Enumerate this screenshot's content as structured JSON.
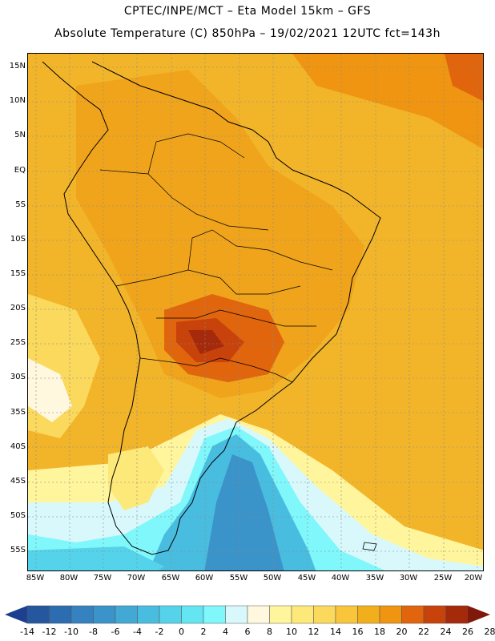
{
  "header": {
    "title_line1": "CPTEC/INPE/MCT –  Eta Model 15km – GFS",
    "title_line2": "Absolute Temperature (C) 850hPa – 19/02/2021 12UTC fct=143h"
  },
  "map": {
    "lat_labels": [
      "15N",
      "10N",
      "5N",
      "EQ",
      "5S",
      "10S",
      "15S",
      "20S",
      "25S",
      "30S",
      "35S",
      "40S",
      "45S",
      "50S",
      "55S"
    ],
    "lon_labels": [
      "85W",
      "80W",
      "75W",
      "70W",
      "65W",
      "60W",
      "55W",
      "50W",
      "45W",
      "40W",
      "35W",
      "30W",
      "25W",
      "20W"
    ]
  },
  "colorbar": {
    "labels": [
      "-14",
      "-12",
      "-10",
      "-8",
      "-6",
      "-4",
      "-2",
      "0",
      "2",
      "4",
      "6",
      "8",
      "10",
      "12",
      "14",
      "16",
      "18",
      "20",
      "22",
      "24",
      "26",
      "28"
    ],
    "colors": [
      "#1c3f8f",
      "#25579f",
      "#2c6cb0",
      "#3681bf",
      "#3a94c9",
      "#41a9d4",
      "#49bde0",
      "#55d3ea",
      "#63e6f2",
      "#7ff7fb",
      "#d8f8fc",
      "#fff7de",
      "#fff59c",
      "#fde87a",
      "#fbd95c",
      "#f8c53b",
      "#f2af1c",
      "#ef9511",
      "#e0650d",
      "#c8420c",
      "#a52a0c",
      "#7f190b"
    ]
  }
}
